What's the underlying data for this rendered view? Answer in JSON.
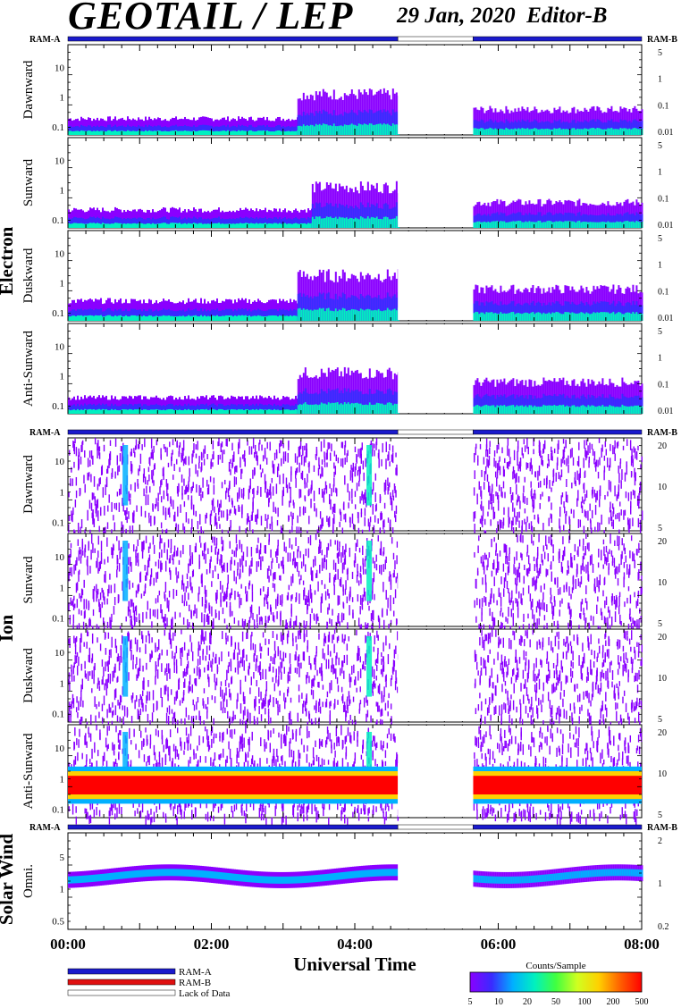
{
  "header": {
    "title": "GEOTAIL / LEP",
    "date": "29 Jan, 2020",
    "editor": "Editor-B"
  },
  "colors": {
    "ram_a": "#1a1acc",
    "ram_b": "#e01010",
    "lack_of_data": "#ffffff",
    "background": "#ffffff",
    "colorbar": [
      "#8a00ff",
      "#3a2aff",
      "#00b0ff",
      "#00f0c0",
      "#40ff40",
      "#d0ff20",
      "#ffd000",
      "#ff6000",
      "#ff0000"
    ]
  },
  "chart_data": {
    "type": "heatmap",
    "xlabel": "Universal Time",
    "x_tick_labels": [
      "00:00",
      "02:00",
      "04:00",
      "06:00",
      "08:00"
    ],
    "x_range_hours": [
      0,
      8
    ],
    "data_gap_hours": [
      4.6,
      5.65
    ],
    "status_bar": {
      "left_label": "RAM-A",
      "right_label": "RAM-B",
      "segments": [
        {
          "start": 0,
          "end": 4.6,
          "mode": "RAM-A"
        },
        {
          "start": 4.6,
          "end": 5.65,
          "mode": "Lack of Data"
        },
        {
          "start": 5.65,
          "end": 8,
          "mode": "RAM-A"
        }
      ]
    },
    "groups": [
      {
        "name": "Electron",
        "left_ticks": [
          "10",
          "1",
          "0.1"
        ],
        "right_ticks": [
          "5",
          "1",
          "0.1",
          "0.01"
        ],
        "panels": [
          {
            "label": "Dawnward",
            "levels_before": [
              {
                "end": 3.2,
                "top": 0.18
              },
              {
                "end": 4.6,
                "top": 0.45
              }
            ],
            "levels_after": [
              {
                "end": 8,
                "top": 0.28
              }
            ]
          },
          {
            "label": "Sunward",
            "levels_before": [
              {
                "end": 3.4,
                "top": 0.2
              },
              {
                "end": 4.6,
                "top": 0.45
              }
            ],
            "levels_after": [
              {
                "end": 8,
                "top": 0.28
              }
            ]
          },
          {
            "label": "Duskward",
            "levels_before": [
              {
                "end": 3.2,
                "top": 0.22
              },
              {
                "end": 4.6,
                "top": 0.5
              }
            ],
            "levels_after": [
              {
                "end": 8,
                "top": 0.35
              }
            ]
          },
          {
            "label": "Anti-Sunward",
            "levels_before": [
              {
                "end": 3.2,
                "top": 0.18
              },
              {
                "end": 4.6,
                "top": 0.45
              }
            ],
            "levels_after": [
              {
                "end": 8,
                "top": 0.35
              }
            ]
          }
        ]
      },
      {
        "name": "Ion",
        "left_ticks": [
          "10",
          "1",
          "0.1"
        ],
        "right_ticks": [
          "20",
          "10",
          "5"
        ],
        "panels": [
          {
            "label": "Dawnward",
            "noise": true
          },
          {
            "label": "Sunward",
            "noise": true
          },
          {
            "label": "Duskward",
            "noise": true
          },
          {
            "label": "Anti-Sunward",
            "noise": true,
            "band": true
          }
        ]
      },
      {
        "name": "Solar Wind",
        "left_ticks": [
          "5",
          "1",
          "0.5"
        ],
        "right_ticks": [
          "2",
          "1",
          "0.2"
        ],
        "panels": [
          {
            "label": "Omni.",
            "solar": true
          }
        ]
      }
    ]
  },
  "legend": {
    "items": [
      {
        "label": "RAM-A",
        "color": "#1a1acc"
      },
      {
        "label": "RAM-B",
        "color": "#e01010"
      },
      {
        "label": "Lack of Data",
        "color": "#ffffff"
      }
    ]
  },
  "colorbar": {
    "title": "Counts/Sample",
    "ticks": [
      "5",
      "10",
      "20",
      "50",
      "100",
      "200",
      "500"
    ]
  }
}
